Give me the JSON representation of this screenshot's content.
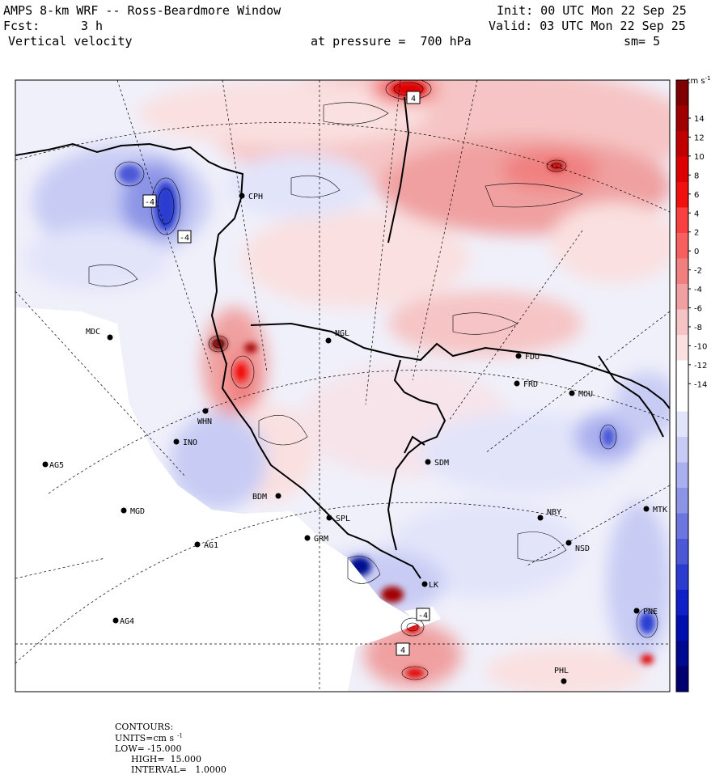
{
  "header": {
    "title": "AMPS 8-km WRF -- Ross-Beardmore Window",
    "fcst_label": "Fcst:",
    "fcst_value": "3 h",
    "field": "Vertical velocity",
    "level": "at pressure =  700 hPa",
    "init": "Init: 00 UTC Mon 22 Sep 25",
    "valid": "Valid: 03 UTC Mon 22 Sep 25",
    "smoothing": "sm= 5"
  },
  "colorbar": {
    "units": "cm s",
    "units_exp": "-1",
    "ticks": [
      "14",
      "12",
      "10",
      "8",
      "6",
      "4",
      "2",
      "0",
      "-2",
      "-4",
      "-6",
      "-8",
      "-10",
      "-12",
      "-14"
    ],
    "colors_top_to_bottom": [
      "#7f0000",
      "#a10000",
      "#c00000",
      "#dd0000",
      "#f01010",
      "#f84040",
      "#f86060",
      "#f08080",
      "#f0a0a0",
      "#f6c4c4",
      "#fae0e0",
      "#ffffff",
      "#ffffff",
      "#e2e4fa",
      "#c8ccf4",
      "#aab0ee",
      "#8c94e6",
      "#6c76de",
      "#4c58d6",
      "#2c3cd0",
      "#1020c8",
      "#0010b0",
      "#000a90",
      "#000070"
    ]
  },
  "stations": [
    {
      "label": "CPH"
    },
    {
      "label": "MDC"
    },
    {
      "label": "NGL"
    },
    {
      "label": "FDU"
    },
    {
      "label": "FRD"
    },
    {
      "label": "MOU"
    },
    {
      "label": "WHN"
    },
    {
      "label": "INO"
    },
    {
      "label": "AG5"
    },
    {
      "label": "SDM"
    },
    {
      "label": "BDM"
    },
    {
      "label": "SPL"
    },
    {
      "label": "GRM"
    },
    {
      "label": "MGD"
    },
    {
      "label": "NBY"
    },
    {
      "label": "MTK"
    },
    {
      "label": "AG1"
    },
    {
      "label": "NSD"
    },
    {
      "label": "LK"
    },
    {
      "label": "PNE"
    },
    {
      "label": "AG4"
    },
    {
      "label": "PHL"
    }
  ],
  "contour_labels": [
    "4",
    "-4",
    "-4",
    "-4",
    "4"
  ],
  "footer": {
    "contours": "CONTOURS:",
    "units_label": "UNITS=cm s",
    "units_exp": "-1",
    "low": "LOW= -15.000",
    "high": "HIGH=  15.000",
    "interval": "INTERVAL=   1.0000"
  },
  "colors": {
    "land_neutral": "#f0f0fa",
    "frame": "#000000",
    "white": "#ffffff"
  }
}
